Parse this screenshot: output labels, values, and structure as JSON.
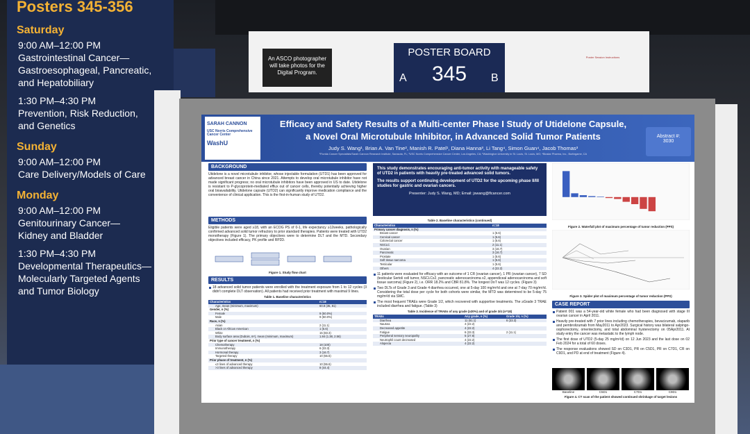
{
  "sign": {
    "title": "Posters 345-356",
    "days": [
      {
        "day": "Saturday",
        "sessions": [
          {
            "time": "9:00 AM–12:00 PM",
            "topic": [
              "Gastrointestinal Cancer—",
              "Gastroesophageal, Pancreatic,",
              "and Hepatobiliary"
            ]
          },
          {
            "time": "1:30 PM–4:30 PM",
            "topic": [
              "Prevention, Risk Reduction,",
              "and Genetics"
            ]
          }
        ]
      },
      {
        "day": "Sunday",
        "sessions": [
          {
            "time": "9:00 AM–12:00 PM",
            "topic": [
              "Care Delivery/Models of Care"
            ]
          }
        ]
      },
      {
        "day": "Monday",
        "sessions": [
          {
            "time": "9:00 AM–12:00 PM",
            "topic": [
              "Genitourinary Cancer—",
              "Kidney and Bladder"
            ]
          },
          {
            "time": "1:30 PM–4:30 PM",
            "topic": [
              "Developmental Therapeutics—",
              "Molecularly Targeted Agents",
              "and Tumor Biology"
            ]
          }
        ]
      }
    ]
  },
  "photo_notice": "An ASCO photographer will take photos for the Digital Program.",
  "board": {
    "label": "POSTER BOARD",
    "left": "A",
    "number": "345",
    "right": "B"
  },
  "instructions_title": "Poster Session Instructions",
  "poster": {
    "header": {
      "logos": [
        "SARAH CANNON",
        "USC Norris Comprehensive Cancer Center",
        "WashU"
      ],
      "title": [
        "Efficacy and Safety Results of a Multi-center Phase I Study of Utidelone Capsule,",
        "a Novel Oral Microtubule Inhibitor, in Advanced Solid Tumor Patients"
      ],
      "authors": "Judy S. Wang¹, Brian A. Van Tine², Manish R. Patel¹, Diana Hanna³, Li Tang⁴, Simon Guan⁴, Jacob Thomas³",
      "affiliations": "¹Florida Cancer Specialists/Sarah Cannon Research Institute, Sarasota, FL; ³USC Norris Comprehensive Cancer Center, Los Angeles, CA; ²Washington University in St. Louis, St. Louis, MO; ⁴Biostar Pharma, Inc., Burlingame, CA",
      "abstract_label": "Abstract #:",
      "abstract_number": "3030"
    },
    "background": {
      "heading": "BACKGROUND",
      "text": "Utidelone is a novel microtubule inhibitor, whose injectable formulation (UTD1) has been approved for advanced breast cancer in China since 2021. Attempts to develop oral microtubule inhibitor have not made significant progress; no oral microtubule inhibitors have been approved in US to date. Utidelone is resistant to P-glycoprotein-mediated efflux out of cancer cells, thereby potentially achieving higher oral bioavailability. Utidelone capsule (UTD2) can significantly improve medication compliance and the convenience of clinical application. This is the first-in-human study of UTD2."
    },
    "methods": {
      "heading": "METHODS",
      "text": "Eligible patients were aged ≥18, with an ECOG PS of 0-1, life expectancy ≥12weeks, pathologically confirmed advanced solid tumor refractory to prior standard therapies. Patients were treated with UTD2 monotherapy (Figure 1). The primary objectives were to determine DLT and the MTD. Secondary objectives included efficacy, PK profile and RP2D.",
      "caption": "Figure 1. Study flow chart"
    },
    "results": {
      "heading": "RESULTS",
      "text": "18 advanced solid tumor patients were enrolled with the treatment exposure from 1 to 12 cycles (3 didn't complete DLT observation). All patients had received prior treatment with maximal 9 lines."
    },
    "table1": {
      "caption": "Table 1. Baseline characteristics",
      "header": [
        "Characteristics",
        "n=18"
      ],
      "rows": [
        [
          "Age, mean (minimum, maximum)",
          "60.8 (35, 81)"
        ],
        [
          "Gender, n (%)"
        ],
        [
          "Female",
          "9 (50.0%)"
        ],
        [
          "Male",
          "9 (50.0%)"
        ],
        [
          "Race, n (%)"
        ],
        [
          "Asian",
          "2 (11.1)"
        ],
        [
          "Black or African American",
          "1 (5.6)"
        ],
        [
          "White",
          "15 (83.3)"
        ],
        [
          "Body surface area (Dubois, m²), mean (minimum, maximum)",
          "1.84 (1.38, 2.56)"
        ],
        [
          "Prior type of cancer treatment, n (%)"
        ],
        [
          "Chemotherapy",
          "18 (100)"
        ],
        [
          "Immunotherapy",
          "6 (33.3)"
        ],
        [
          "Hormonal therapy",
          "3 (16.7)"
        ],
        [
          "Targeted therapy",
          "10 (55.6)"
        ],
        [
          "Prior phase of treatment, n (%)"
        ],
        [
          "≤3 lines of advanced therapy",
          "10 (55.6)"
        ],
        [
          ">3 lines of advanced therapy",
          "8 (44.4)"
        ]
      ]
    },
    "highlight": {
      "points": [
        "This study demonstrates encouraging anti-tumor activity with manageable safety of UTD2 in patients with heavily pre-treated advanced solid tumors.",
        "The results support continuing development of UTD2 for the upcoming phase II/III studies for gastric and ovarian cancers."
      ],
      "presenter": "Presenter: Judy S. Wang, MD; Email: jswang@flcancer.com"
    },
    "table2": {
      "caption": "Table 2. Baseline characteristics (continued)",
      "header": [
        "Characteristics",
        "n=18"
      ],
      "rows": [
        [
          "Primary cancer diagnosis, n (%)"
        ],
        [
          "Breast cancer",
          "1 (5.6)"
        ],
        [
          "Cervical cancer",
          "1 (5.6)"
        ],
        [
          "Colorectal cancer",
          "1 (5.6)"
        ],
        [
          "NSCLC",
          "2 (11.1)"
        ],
        [
          "Ovarian",
          "3 (16.7)"
        ],
        [
          "Pancreatic",
          "3 (16.7)"
        ],
        [
          "Prostate",
          "1 (5.6)"
        ],
        [
          "Soft tissue sarcoma",
          "1 (5.6)"
        ],
        [
          "Testicular",
          "1 (5.6)"
        ],
        [
          "Others",
          "4 (22.2)"
        ]
      ]
    },
    "results2": {
      "bullets": [
        "11 patients were evaluated for efficacy with an outcome of 1 CR (ovarian cancer), 1 PR (ovarian cancer), 7 SD (testicular Sertoli cell tumor, NSCLCx2, pancreatic adenocarcinoma x2, appendiceal adenocarcinoma and soft tissue sarcoma) (Figure 2), i.e. ORR 18.2% and CBR 81.8%. The longest DoT was 12 cycles. (Figure 3)",
        "Two DLTs of Grade 3 and Grade 4 diarrhea occurred, one at 5-day 100 mg/m²/d and one at 7-day 70 mg/m²/d. Considering the total dose per cycle for both cohorts were similar, the MTD was determined to be 5-day 75 mg/m²/d via SMC.",
        "The most frequent TRAEs were Grade 1/2, which recovered with supportive treatments. The ≥Grade 3 TRAE included diarrhea and fatigue. (Table 3)"
      ]
    },
    "table3": {
      "caption": "Table 3. Incidence of TRAEs of any grade (≥20%) and of grade 3/4 (n=18)",
      "header": [
        "TRAEs",
        "Any grade, n (%)",
        "Grade 3/4, n (%)"
      ],
      "rows": [
        [
          "Diarrhea",
          "11 (61.1)",
          "6 (33.3)"
        ],
        [
          "Nausea",
          "4 (22.2)"
        ],
        [
          "Decreased appetite",
          "4 (22.2)"
        ],
        [
          "Fatigue",
          "6 (33.3)",
          "2 (11.1)"
        ],
        [
          "Peripheral sensory neuropathy",
          "5 (27.8)"
        ],
        [
          "Neutrophil count decreased",
          "4 (22.2)"
        ],
        [
          "Alopecia",
          "4 (22.2)"
        ]
      ]
    },
    "figure2": {
      "caption": "Figure 2. Waterfall plot of maximum percentage of tumor reduction (PPS)",
      "values": [
        55,
        8,
        4,
        2,
        1,
        -2,
        -4,
        -10,
        -15,
        -25,
        -30
      ],
      "colors": [
        "#3a5fc0",
        "#3a5fc0",
        "#3a5fc0",
        "#3a5fc0",
        "#3a5fc0",
        "#c44",
        "#c44",
        "#c44",
        "#c44",
        "#c44",
        "#c44"
      ],
      "ylim": [
        -40,
        60
      ]
    },
    "figure3": {
      "caption": "Figure 3. Spider plot of maximum percentage of tumor reduction (PPS)"
    },
    "case_report": {
      "heading": "CASE REPORT",
      "bullets": [
        "Patient 001 was a 54-year-old white female who had been diagnosed with stage III ovarian cancer in April 2011.",
        "Heavily pre-treated with 7 prior lines including chemotherapies, bevacizumab, olaparib and pembrolizumab from May2011 to Apr2023. Surgical history was bilateral salpingo-oophorectomy, omentectomy, and total abdominal hysterectomy on 05Apr2011. At study entry the cancer was metastatic to the lymph node.",
        "The first dose of UTD2 (5-day 25 mg/m²/d) on 12 Jun 2023 and the last dose on 02 Feb 2024 for a total of 60 doses.",
        "The response evaluations showed SD on C3D1, PR on C5D1, PR on C7D1, CR on C9D1, and PD at end of treatment (Figure 4)."
      ],
      "ct_labels": [
        "Baseline",
        "C5D1",
        "C7D1",
        "C9D1"
      ],
      "caption": "Figure 4. CT scan of the patient showed continued shrinkage of target lesions"
    }
  }
}
